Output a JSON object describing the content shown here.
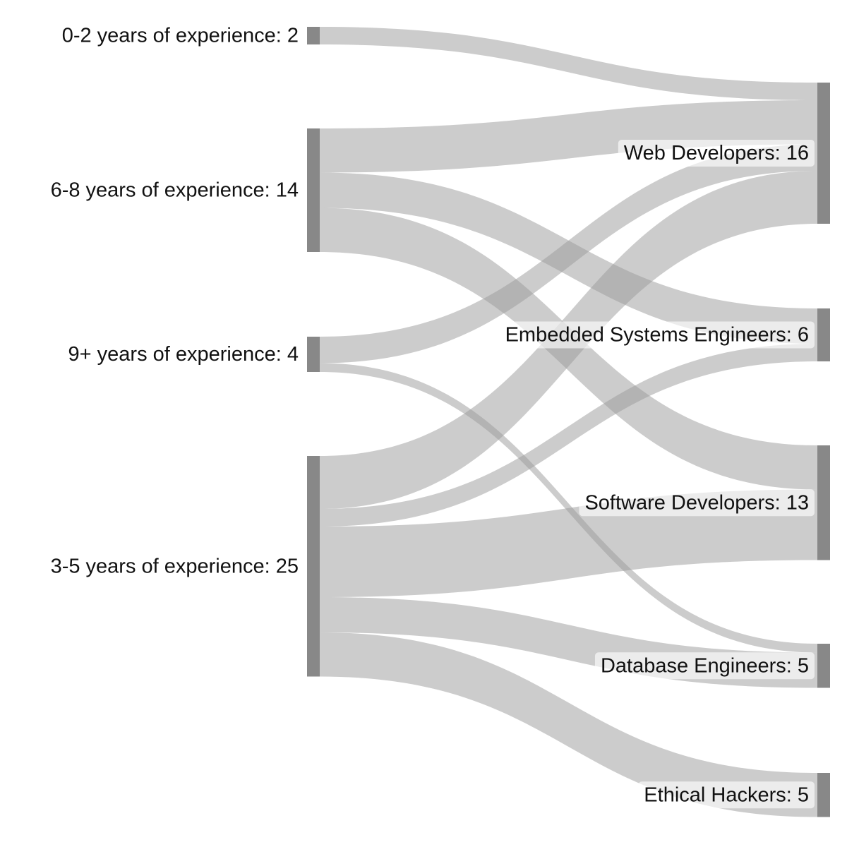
{
  "chart_data": {
    "type": "sankey",
    "sources": [
      {
        "id": "e02",
        "label": "0-2 years of experience: 2",
        "value": 2
      },
      {
        "id": "e68",
        "label": "6-8 years of experience: 14",
        "value": 14
      },
      {
        "id": "e9p",
        "label": "9+ years of experience: 4",
        "value": 4
      },
      {
        "id": "e35",
        "label": "3-5 years of experience: 25",
        "value": 25
      }
    ],
    "targets": [
      {
        "id": "web",
        "label": "Web Developers: 16",
        "value": 16
      },
      {
        "id": "emb",
        "label": "Embedded Systems Engineers: 6",
        "value": 6
      },
      {
        "id": "sw",
        "label": "Software Developers: 13",
        "value": 13
      },
      {
        "id": "db",
        "label": "Database Engineers: 5",
        "value": 5
      },
      {
        "id": "eh",
        "label": "Ethical Hackers: 5",
        "value": 5
      }
    ],
    "links": [
      {
        "source": "e02",
        "target": "web",
        "value": 2
      },
      {
        "source": "e68",
        "target": "web",
        "value": 5
      },
      {
        "source": "e68",
        "target": "emb",
        "value": 4
      },
      {
        "source": "e68",
        "target": "sw",
        "value": 5
      },
      {
        "source": "e9p",
        "target": "web",
        "value": 3
      },
      {
        "source": "e9p",
        "target": "db",
        "value": 1
      },
      {
        "source": "e35",
        "target": "web",
        "value": 6
      },
      {
        "source": "e35",
        "target": "emb",
        "value": 2
      },
      {
        "source": "e35",
        "target": "sw",
        "value": 8
      },
      {
        "source": "e35",
        "target": "db",
        "value": 4
      },
      {
        "source": "e35",
        "target": "eh",
        "value": 5
      }
    ],
    "colors": {
      "node": "#888888",
      "link": "#9a9a9a"
    }
  }
}
